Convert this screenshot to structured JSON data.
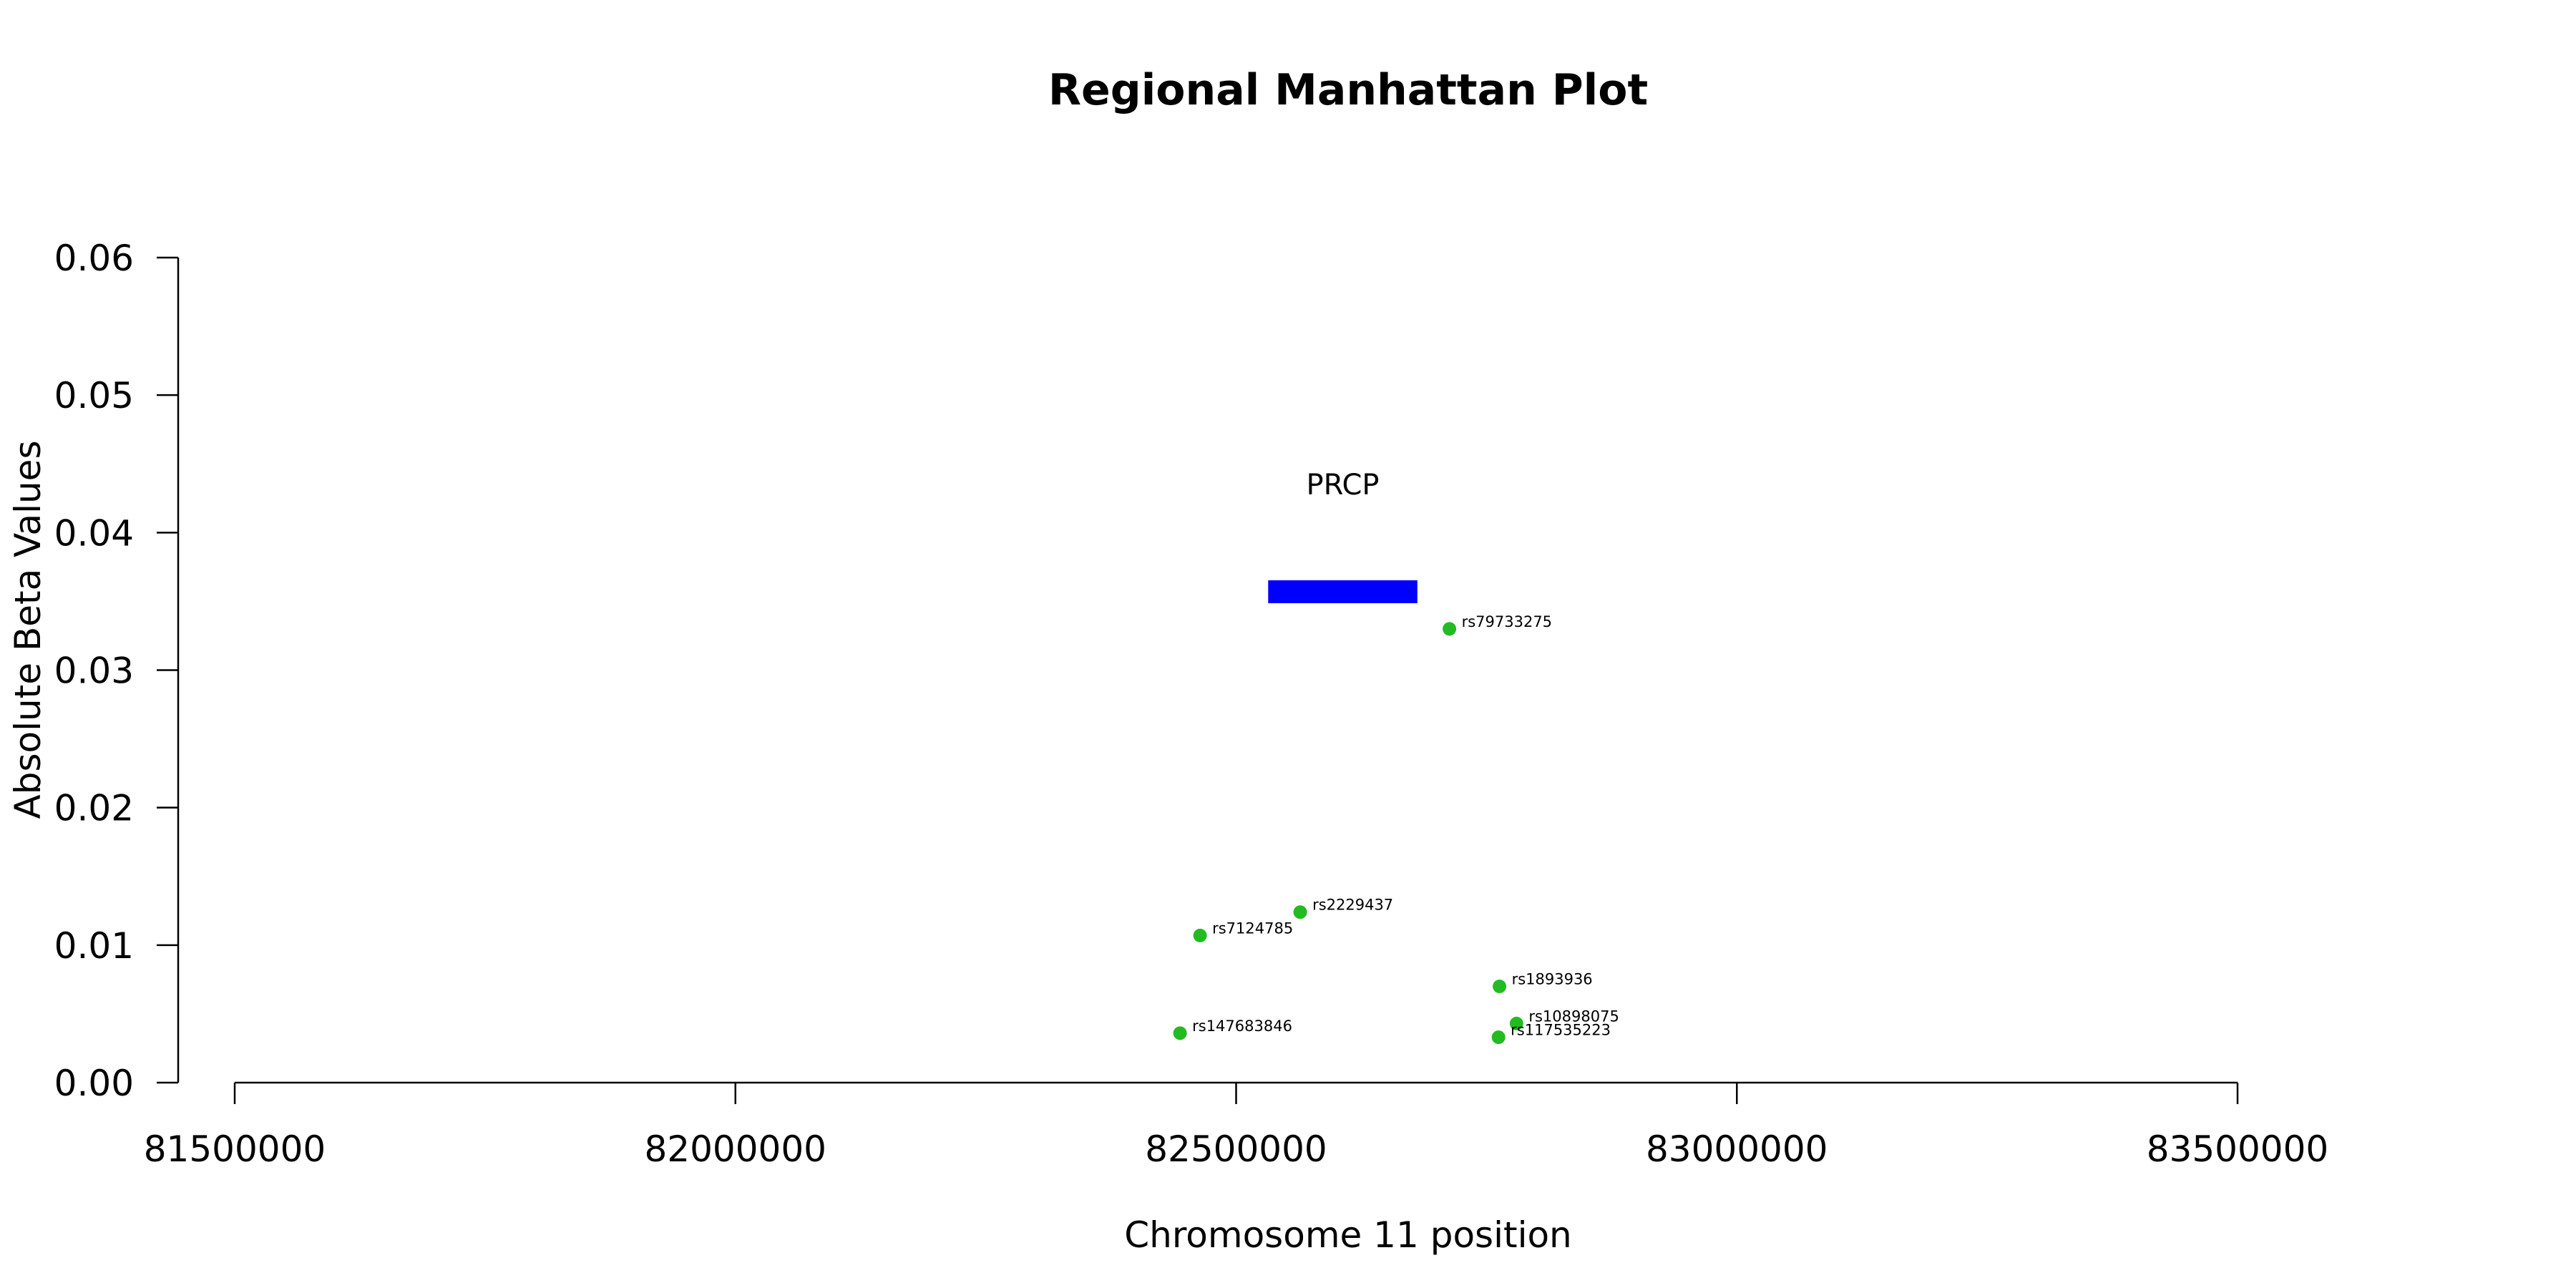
{
  "chart_data": {
    "type": "scatter",
    "title": "Regional Manhattan Plot",
    "xlabel": "Chromosome 11 position",
    "ylabel": "Absolute Beta Values",
    "xlim": [
      81500000,
      83500000
    ],
    "ylim": [
      0,
      0.06
    ],
    "x_ticks": [
      81500000,
      82000000,
      82500000,
      83000000,
      83500000
    ],
    "y_ticks": [
      0.0,
      0.01,
      0.02,
      0.03,
      0.04,
      0.05,
      0.06
    ],
    "x_tick_labels": [
      "81500000",
      "82000000",
      "82500000",
      "83000000",
      "83500000"
    ],
    "y_tick_labels": [
      "0.00",
      "0.01",
      "0.02",
      "0.03",
      "0.04",
      "0.05",
      "0.06"
    ],
    "grid": false,
    "point_color": "#22bb22",
    "points": [
      {
        "label": "rs79733275",
        "x": 82713000,
        "y": 0.033
      },
      {
        "label": "rs2229437",
        "x": 82564000,
        "y": 0.0124
      },
      {
        "label": "rs7124785",
        "x": 82464000,
        "y": 0.0107
      },
      {
        "label": "rs1893936",
        "x": 82763000,
        "y": 0.007
      },
      {
        "label": "rs10898075",
        "x": 82780000,
        "y": 0.0043
      },
      {
        "label": "rs147683846",
        "x": 82444000,
        "y": 0.0036
      },
      {
        "label": "rs117535223",
        "x": 82762000,
        "y": 0.0033
      }
    ],
    "genes": [
      {
        "name": "PRCP",
        "start": 82532000,
        "end": 82681000,
        "y": 0.0357,
        "color": "#0000ff"
      }
    ]
  }
}
